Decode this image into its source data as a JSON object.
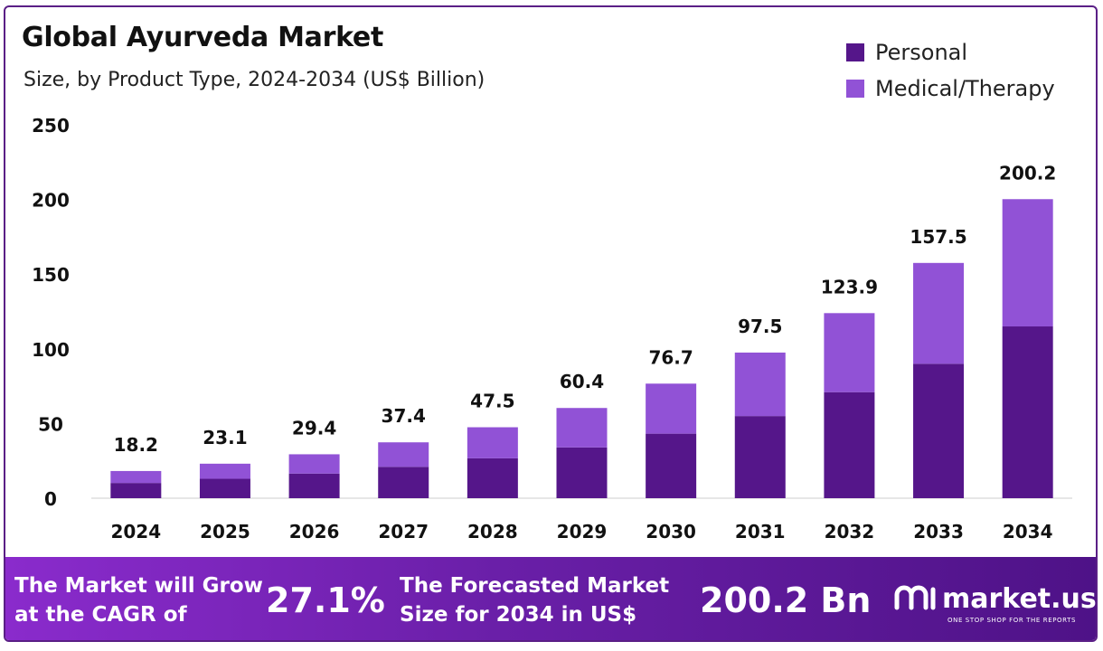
{
  "title": "Global Ayurveda Market",
  "subtitle": "Size, by Product Type, 2024-2034 (US$ Billion)",
  "colors": {
    "personal": "#55168a",
    "medical": "#9152d6",
    "accent": "#5a1f86"
  },
  "chart_data": {
    "type": "bar",
    "stacked": true,
    "categories": [
      "2024",
      "2025",
      "2026",
      "2027",
      "2028",
      "2029",
      "2030",
      "2031",
      "2032",
      "2033",
      "2034"
    ],
    "series": [
      {
        "name": "Personal",
        "values": [
          10.2,
          13.0,
          16.5,
          21.0,
          26.7,
          34.0,
          43.2,
          55.0,
          71.0,
          90.0,
          115.0
        ]
      },
      {
        "name": "Medical/Therapy",
        "values": [
          8.0,
          10.1,
          12.9,
          16.4,
          20.8,
          26.4,
          33.5,
          42.5,
          52.9,
          67.5,
          85.2
        ]
      }
    ],
    "totals": [
      "18.2",
      "23.1",
      "29.4",
      "37.4",
      "47.5",
      "60.4",
      "76.7",
      "97.5",
      "123.9",
      "157.5",
      "200.2"
    ],
    "yticks": [
      "0",
      "50",
      "100",
      "150",
      "200",
      "250"
    ],
    "ylim": [
      0,
      250
    ],
    "grid": false,
    "legend_position": "top-right"
  },
  "banner": {
    "cagr_text_line1": "The Market will Grow",
    "cagr_text_line2": "at the CAGR of",
    "cagr_value": "27.1%",
    "forecast_text_line1": "The Forecasted Market",
    "forecast_text_line2": "Size for 2034 in US$",
    "forecast_value": "200.2 Bn",
    "brand": "market.us",
    "brand_tagline": "ONE STOP SHOP FOR THE REPORTS",
    "brand_icon": "market-us-logo-icon"
  }
}
